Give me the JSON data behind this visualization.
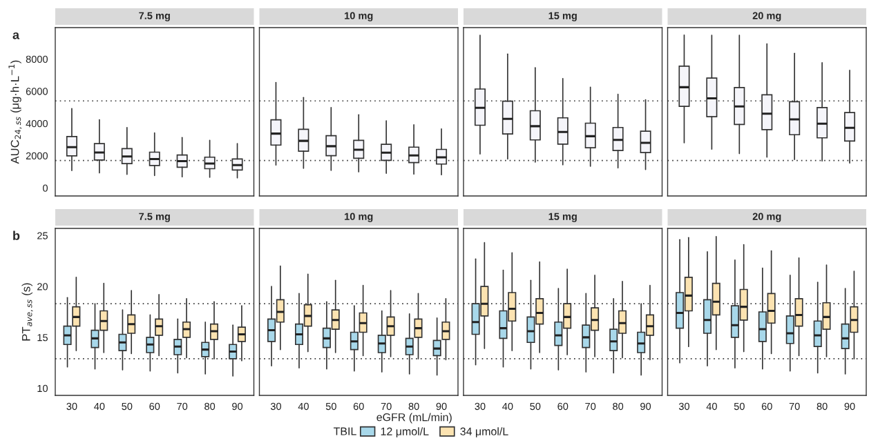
{
  "chart_data": [
    {
      "type": "box",
      "title": "7.5 mg",
      "categories": [
        "30",
        "40",
        "50",
        "60",
        "70",
        "80",
        "90"
      ],
      "ylabel": "AUC$_{24,ss}$ (μg·h·L$^{−1}$)",
      "ylim": [
        -500,
        9950
      ],
      "yticks": [
        0,
        2000,
        4000,
        6000,
        8000
      ],
      "tick_labels": "y",
      "annotations": [
        "a"
      ],
      "ref_lines": [
        {
          "axis": "y",
          "value": 5400,
          "line_style": "dotted"
        },
        {
          "axis": "y",
          "value": 1700,
          "line_style": "dotted"
        }
      ],
      "series": [
        {
          "color": "#f5f5fa",
          "boxes": [
            {
              "low": 1080,
              "q1": 1990,
              "median": 2530,
              "q3": 3190,
              "high": 4920
            },
            {
              "low": 930,
              "q1": 1730,
              "median": 2200,
              "q3": 2750,
              "high": 4230
            },
            {
              "low": 840,
              "q1": 1510,
              "median": 1950,
              "q3": 2440,
              "high": 3750
            },
            {
              "low": 770,
              "q1": 1390,
              "median": 1790,
              "q3": 2220,
              "high": 3410
            },
            {
              "low": 690,
              "q1": 1280,
              "median": 1660,
              "q3": 2040,
              "high": 3130
            },
            {
              "low": 660,
              "q1": 1190,
              "median": 1510,
              "q3": 1910,
              "high": 2950
            },
            {
              "low": 620,
              "q1": 1110,
              "median": 1420,
              "q3": 1800,
              "high": 2750
            }
          ]
        }
      ]
    },
    {
      "type": "box",
      "title": "10 mg",
      "categories": [
        "30",
        "40",
        "50",
        "60",
        "70",
        "80",
        "90"
      ],
      "ylim": [
        -500,
        9950
      ],
      "yticks": [
        0,
        2000,
        4000,
        6000,
        8000
      ],
      "tick_labels": false,
      "ref_lines": [
        {
          "axis": "y",
          "value": 5400,
          "line_style": "dotted"
        },
        {
          "axis": "y",
          "value": 1700,
          "line_style": "dotted"
        }
      ],
      "series": [
        {
          "color": "#f5f5fa",
          "boxes": [
            {
              "low": 1420,
              "q1": 2660,
              "median": 3370,
              "q3": 4230,
              "high": 6540
            },
            {
              "low": 1220,
              "q1": 2280,
              "median": 2920,
              "q3": 3640,
              "high": 5610
            },
            {
              "low": 1090,
              "q1": 2000,
              "median": 2590,
              "q3": 3240,
              "high": 4990
            },
            {
              "low": 1000,
              "q1": 1840,
              "median": 2370,
              "q3": 2950,
              "high": 4540
            },
            {
              "low": 910,
              "q1": 1710,
              "median": 2190,
              "q3": 2710,
              "high": 4170
            },
            {
              "low": 860,
              "q1": 1570,
              "median": 2020,
              "q3": 2530,
              "high": 3920
            },
            {
              "low": 820,
              "q1": 1480,
              "median": 1900,
              "q3": 2390,
              "high": 3660
            }
          ]
        }
      ]
    },
    {
      "type": "box",
      "title": "15 mg",
      "categories": [
        "30",
        "40",
        "50",
        "60",
        "70",
        "80",
        "90"
      ],
      "ylim": [
        -500,
        9950
      ],
      "yticks": [
        0,
        2000,
        4000,
        6000,
        8000
      ],
      "tick_labels": false,
      "ref_lines": [
        {
          "axis": "y",
          "value": 5400,
          "line_style": "dotted"
        },
        {
          "axis": "y",
          "value": 1700,
          "line_style": "dotted"
        }
      ],
      "series": [
        {
          "color": "#f5f5fa",
          "boxes": [
            {
              "low": 2110,
              "q1": 3890,
              "median": 4970,
              "q3": 6140,
              "high": 9480
            },
            {
              "low": 1800,
              "q1": 3350,
              "median": 4290,
              "q3": 5380,
              "high": 8310
            },
            {
              "low": 1600,
              "q1": 2980,
              "median": 3830,
              "q3": 4790,
              "high": 7460
            },
            {
              "low": 1440,
              "q1": 2720,
              "median": 3470,
              "q3": 4350,
              "high": 6790
            },
            {
              "low": 1340,
              "q1": 2490,
              "median": 3210,
              "q3": 4020,
              "high": 6250
            },
            {
              "low": 1240,
              "q1": 2320,
              "median": 2980,
              "q3": 3750,
              "high": 5810
            },
            {
              "low": 1140,
              "q1": 2190,
              "median": 2800,
              "q3": 3520,
              "high": 5470
            }
          ]
        }
      ]
    },
    {
      "type": "box",
      "title": "20 mg",
      "categories": [
        "30",
        "40",
        "50",
        "60",
        "70",
        "80",
        "90"
      ],
      "ylim": [
        -500,
        9950
      ],
      "yticks": [
        0,
        2000,
        4000,
        6000,
        8000
      ],
      "tick_labels": false,
      "ref_lines": [
        {
          "axis": "y",
          "value": 5400,
          "line_style": "dotted"
        },
        {
          "axis": "y",
          "value": 1700,
          "line_style": "dotted"
        }
      ],
      "series": [
        {
          "color": "#f5f5fa",
          "boxes": [
            {
              "low": 2800,
              "q1": 5060,
              "median": 6250,
              "q3": 7560,
              "high": 9490
            },
            {
              "low": 2400,
              "q1": 4420,
              "median": 5560,
              "q3": 6820,
              "high": 9480
            },
            {
              "low": 2130,
              "q1": 3940,
              "median": 5060,
              "q3": 6230,
              "high": 9480
            },
            {
              "low": 1910,
              "q1": 3620,
              "median": 4610,
              "q3": 5780,
              "high": 8940
            },
            {
              "low": 1760,
              "q1": 3300,
              "median": 4250,
              "q3": 5350,
              "high": 8350
            },
            {
              "low": 1670,
              "q1": 3110,
              "median": 3990,
              "q3": 4990,
              "high": 7770
            },
            {
              "low": 1540,
              "q1": 2910,
              "median": 3730,
              "q3": 4680,
              "high": 7300
            }
          ]
        }
      ]
    },
    {
      "type": "box",
      "title": "7.5 mg",
      "categories": [
        "30",
        "40",
        "50",
        "60",
        "70",
        "80",
        "90"
      ],
      "ylabel": "PT$_{ave,ss}$ (s)",
      "ylim": [
        9.3,
        25.7
      ],
      "yticks": [
        10,
        15,
        20,
        25
      ],
      "annotations": [
        "b"
      ],
      "legend": "bottom",
      "legend_title": "TBIL",
      "ref_lines": [
        {
          "axis": "y",
          "value": 18.3,
          "line_style": "dotted"
        },
        {
          "axis": "y",
          "value": 12.9,
          "line_style": "dotted"
        }
      ],
      "series": [
        {
          "name": "12 μmol/L",
          "color": "#a8d8ea",
          "boxes": [
            {
              "low": 12.1,
              "q1": 14.3,
              "median": 15.2,
              "q3": 16.1,
              "high": 18.9
            },
            {
              "low": 11.9,
              "q1": 14.0,
              "median": 14.9,
              "q3": 15.7,
              "high": 18.3
            },
            {
              "low": 11.8,
              "q1": 13.7,
              "median": 14.5,
              "q3": 15.3,
              "high": 17.7
            },
            {
              "low": 11.7,
              "q1": 13.5,
              "median": 14.3,
              "q3": 15.0,
              "high": 17.2
            },
            {
              "low": 11.5,
              "q1": 13.3,
              "median": 14.1,
              "q3": 14.8,
              "high": 16.8
            },
            {
              "low": 11.4,
              "q1": 13.1,
              "median": 13.8,
              "q3": 14.5,
              "high": 16.5
            },
            {
              "low": 11.2,
              "q1": 12.9,
              "median": 13.6,
              "q3": 14.3,
              "high": 16.2
            }
          ]
        },
        {
          "name": "34 μmol/L",
          "color": "#fce3b1",
          "boxes": [
            {
              "low": 13.7,
              "q1": 16.1,
              "median": 17.0,
              "q3": 18.0,
              "high": 20.9
            },
            {
              "low": 13.5,
              "q1": 15.7,
              "median": 16.6,
              "q3": 17.6,
              "high": 20.3
            },
            {
              "low": 13.4,
              "q1": 15.4,
              "median": 16.3,
              "q3": 17.2,
              "high": 19.6
            },
            {
              "low": 13.2,
              "q1": 15.2,
              "median": 16.1,
              "q3": 16.8,
              "high": 19.2
            },
            {
              "low": 13.0,
              "q1": 15.0,
              "median": 15.8,
              "q3": 16.5,
              "high": 18.8
            },
            {
              "low": 12.9,
              "q1": 14.8,
              "median": 15.6,
              "q3": 16.3,
              "high": 18.5
            },
            {
              "low": 12.7,
              "q1": 14.6,
              "median": 15.3,
              "q3": 16.0,
              "high": 18.1
            }
          ]
        }
      ]
    },
    {
      "type": "box",
      "title": "10 mg",
      "categories": [
        "30",
        "40",
        "50",
        "60",
        "70",
        "80",
        "90"
      ],
      "xlabel": "eGFR (mL/min)",
      "ylim": [
        9.3,
        25.7
      ],
      "yticks": [
        10,
        15,
        20,
        25
      ],
      "tick_labels": "x",
      "ref_lines": [
        {
          "axis": "y",
          "value": 18.3,
          "line_style": "dotted"
        },
        {
          "axis": "y",
          "value": 12.9,
          "line_style": "dotted"
        }
      ],
      "series": [
        {
          "color": "#a8d8ea",
          "boxes": [
            {
              "low": 12.2,
              "q1": 14.6,
              "median": 15.7,
              "q3": 16.8,
              "high": 20.0
            },
            {
              "low": 12.0,
              "q1": 14.3,
              "median": 15.3,
              "q3": 16.3,
              "high": 19.3
            },
            {
              "low": 11.9,
              "q1": 14.0,
              "median": 14.9,
              "q3": 15.9,
              "high": 18.5
            },
            {
              "low": 11.7,
              "q1": 13.8,
              "median": 14.6,
              "q3": 15.5,
              "high": 18.1
            },
            {
              "low": 11.6,
              "q1": 13.5,
              "median": 14.4,
              "q3": 15.2,
              "high": 17.6
            },
            {
              "low": 11.4,
              "q1": 13.3,
              "median": 14.1,
              "q3": 14.9,
              "high": 17.3
            },
            {
              "low": 11.3,
              "q1": 13.2,
              "median": 13.9,
              "q3": 14.7,
              "high": 16.9
            }
          ]
        },
        {
          "color": "#fce3b1",
          "boxes": [
            {
              "low": 13.8,
              "q1": 16.5,
              "median": 17.5,
              "q3": 18.7,
              "high": 22.0
            },
            {
              "low": 13.6,
              "q1": 16.1,
              "median": 17.1,
              "q3": 18.2,
              "high": 21.2
            },
            {
              "low": 13.5,
              "q1": 15.8,
              "median": 16.7,
              "q3": 17.7,
              "high": 20.6
            },
            {
              "low": 13.2,
              "q1": 15.5,
              "median": 16.4,
              "q3": 17.4,
              "high": 20.1
            },
            {
              "low": 13.1,
              "q1": 15.2,
              "median": 16.1,
              "q3": 17.0,
              "high": 19.6
            },
            {
              "low": 12.9,
              "q1": 15.0,
              "median": 15.9,
              "q3": 16.8,
              "high": 19.3
            },
            {
              "low": 12.8,
              "q1": 14.8,
              "median": 15.6,
              "q3": 16.5,
              "high": 18.8
            }
          ]
        }
      ]
    },
    {
      "type": "box",
      "title": "15 mg",
      "categories": [
        "30",
        "40",
        "50",
        "60",
        "70",
        "80",
        "90"
      ],
      "ylim": [
        9.3,
        25.7
      ],
      "yticks": [
        10,
        15,
        20,
        25
      ],
      "tick_labels": "x",
      "ref_lines": [
        {
          "axis": "y",
          "value": 18.3,
          "line_style": "dotted"
        },
        {
          "axis": "y",
          "value": 12.9,
          "line_style": "dotted"
        }
      ],
      "series": [
        {
          "color": "#a8d8ea",
          "boxes": [
            {
              "low": 12.3,
              "q1": 15.3,
              "median": 16.5,
              "q3": 18.3,
              "high": 22.7
            },
            {
              "low": 12.1,
              "q1": 14.9,
              "median": 15.9,
              "q3": 17.6,
              "high": 21.6
            },
            {
              "low": 11.9,
              "q1": 14.5,
              "median": 15.6,
              "q3": 17.0,
              "high": 20.6
            },
            {
              "low": 11.8,
              "q1": 14.2,
              "median": 15.2,
              "q3": 16.5,
              "high": 19.8
            },
            {
              "low": 11.6,
              "q1": 14.0,
              "median": 15.0,
              "q3": 16.2,
              "high": 19.3
            },
            {
              "low": 11.5,
              "q1": 13.7,
              "median": 14.6,
              "q3": 15.8,
              "high": 18.8
            },
            {
              "low": 11.3,
              "q1": 13.5,
              "median": 14.4,
              "q3": 15.5,
              "high": 18.3
            }
          ]
        },
        {
          "color": "#fce3b1",
          "boxes": [
            {
              "low": 13.9,
              "q1": 17.1,
              "median": 18.3,
              "q3": 20.0,
              "high": 24.3
            },
            {
              "low": 13.7,
              "q1": 16.6,
              "median": 17.8,
              "q3": 19.4,
              "high": 23.3
            },
            {
              "low": 13.5,
              "q1": 16.3,
              "median": 17.4,
              "q3": 18.8,
              "high": 22.4
            },
            {
              "low": 13.3,
              "q1": 15.9,
              "median": 17.0,
              "q3": 18.3,
              "high": 21.7
            },
            {
              "low": 13.1,
              "q1": 15.7,
              "median": 16.7,
              "q3": 17.9,
              "high": 21.1
            },
            {
              "low": 13.0,
              "q1": 15.4,
              "median": 16.4,
              "q3": 17.6,
              "high": 20.5
            },
            {
              "low": 12.8,
              "q1": 15.2,
              "median": 16.1,
              "q3": 17.2,
              "high": 20.1
            }
          ]
        }
      ]
    },
    {
      "type": "box",
      "title": "20 mg",
      "categories": [
        "30",
        "40",
        "50",
        "60",
        "70",
        "80",
        "90"
      ],
      "ylim": [
        9.3,
        25.7
      ],
      "yticks": [
        10,
        15,
        20,
        25
      ],
      "tick_labels": "x",
      "ref_lines": [
        {
          "axis": "y",
          "value": 18.3,
          "line_style": "dotted"
        },
        {
          "axis": "y",
          "value": 12.9,
          "line_style": "dotted"
        }
      ],
      "series": [
        {
          "color": "#a8d8ea",
          "boxes": [
            {
              "low": 12.5,
              "q1": 15.9,
              "median": 17.4,
              "q3": 19.4,
              "high": 24.6
            },
            {
              "low": 12.2,
              "q1": 15.4,
              "median": 16.7,
              "q3": 18.7,
              "high": 23.4
            },
            {
              "low": 12.0,
              "q1": 15.0,
              "median": 16.2,
              "q3": 18.1,
              "high": 22.6
            },
            {
              "low": 11.9,
              "q1": 14.6,
              "median": 15.8,
              "q3": 17.5,
              "high": 21.8
            },
            {
              "low": 11.7,
              "q1": 14.4,
              "median": 15.4,
              "q3": 17.1,
              "high": 21.1
            },
            {
              "low": 11.5,
              "q1": 14.1,
              "median": 15.2,
              "q3": 16.6,
              "high": 20.4
            },
            {
              "low": 11.4,
              "q1": 13.9,
              "median": 14.9,
              "q3": 16.3,
              "high": 19.8
            }
          ]
        },
        {
          "color": "#fce3b1",
          "boxes": [
            {
              "low": 14.1,
              "q1": 17.6,
              "median": 19.1,
              "q3": 20.9,
              "high": 24.8
            },
            {
              "low": 13.8,
              "q1": 17.2,
              "median": 18.5,
              "q3": 20.3,
              "high": 24.9
            },
            {
              "low": 13.6,
              "q1": 16.7,
              "median": 18.0,
              "q3": 19.7,
              "high": 24.1
            },
            {
              "low": 13.4,
              "q1": 16.4,
              "median": 17.6,
              "q3": 19.3,
              "high": 23.5
            },
            {
              "low": 13.2,
              "q1": 16.1,
              "median": 17.2,
              "q3": 18.8,
              "high": 22.8
            },
            {
              "low": 13.1,
              "q1": 15.8,
              "median": 17.0,
              "q3": 18.4,
              "high": 22.1
            },
            {
              "low": 12.9,
              "q1": 15.5,
              "median": 16.7,
              "q3": 18.0,
              "high": 21.5
            }
          ]
        }
      ]
    }
  ]
}
